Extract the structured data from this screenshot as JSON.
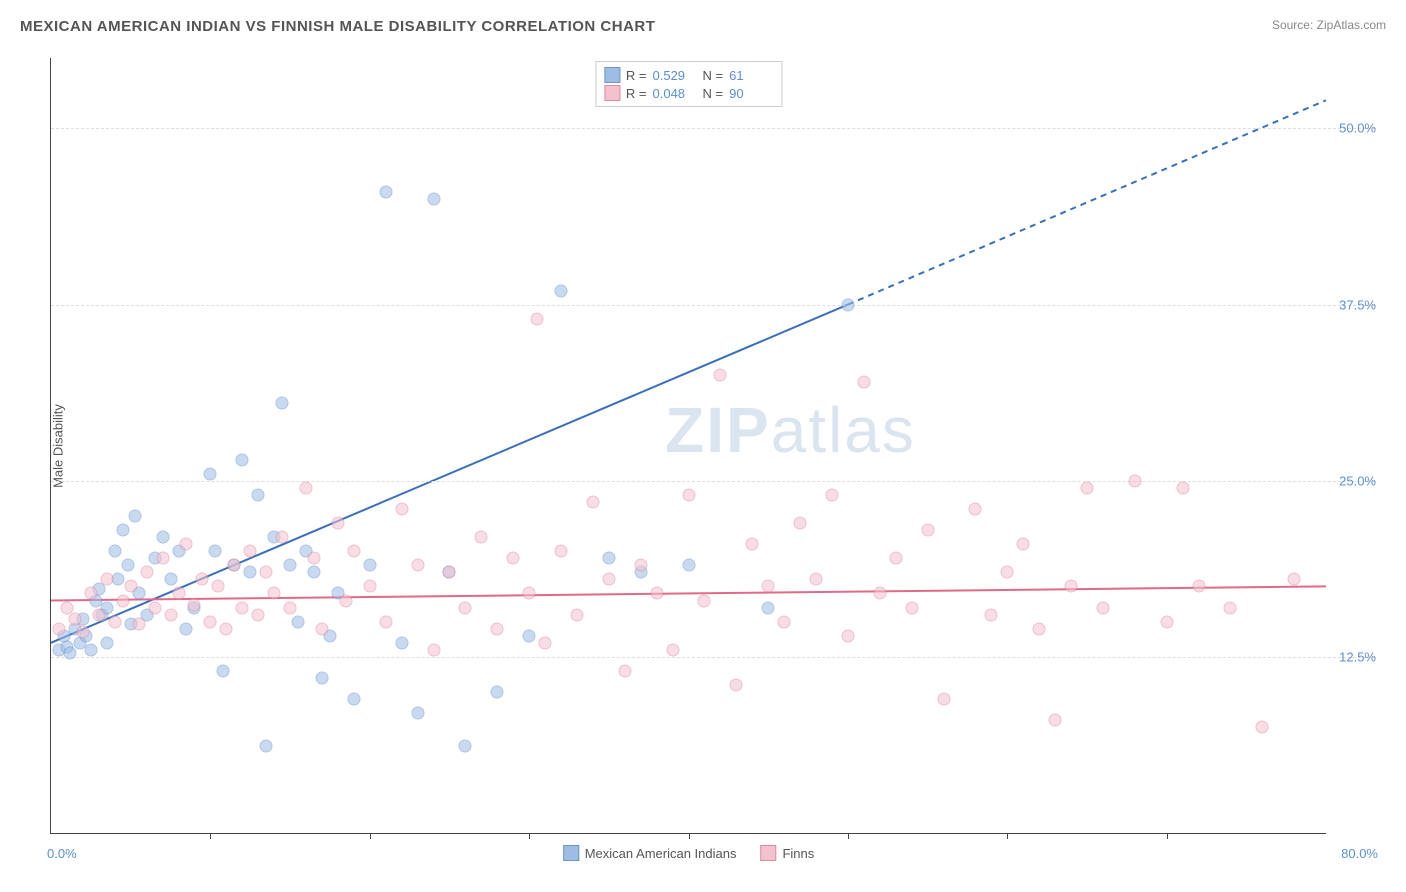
{
  "title": "MEXICAN AMERICAN INDIAN VS FINNISH MALE DISABILITY CORRELATION CHART",
  "source": "Source: ZipAtlas.com",
  "watermark_a": "ZIP",
  "watermark_b": "atlas",
  "chart": {
    "type": "scatter",
    "xlim": [
      0,
      80
    ],
    "ylim": [
      0,
      55
    ],
    "x_label_start": "0.0%",
    "x_label_end": "80.0%",
    "x_tick_positions": [
      10,
      20,
      30,
      40,
      50,
      60,
      70
    ],
    "y_gridlines": [
      12.5,
      25.0,
      37.5,
      50.0
    ],
    "y_tick_labels": [
      "12.5%",
      "25.0%",
      "37.5%",
      "50.0%"
    ],
    "y_axis_title": "Male Disability",
    "background_color": "#ffffff",
    "grid_color": "#dddddd",
    "axis_color": "#444444",
    "tick_label_color": "#5a8fd6",
    "point_radius": 6.5,
    "point_opacity": 0.55,
    "series": [
      {
        "name": "Mexican American Indians",
        "fill_color": "#9ebde5",
        "stroke_color": "#6a96cf",
        "R": "0.529",
        "N": "61",
        "trend": {
          "x1": 0,
          "y1": 13.5,
          "x2": 50,
          "y2": 37.5,
          "x2_dash": 80,
          "y2_dash": 52,
          "color": "#3a6fba",
          "width": 2
        },
        "points": [
          [
            0.5,
            13
          ],
          [
            0.8,
            14
          ],
          [
            1,
            13.2
          ],
          [
            1.2,
            12.8
          ],
          [
            1.5,
            14.5
          ],
          [
            1.8,
            13.5
          ],
          [
            2,
            15.2
          ],
          [
            2.2,
            14
          ],
          [
            2.5,
            13
          ],
          [
            2.8,
            16.5
          ],
          [
            3,
            17.3
          ],
          [
            3.2,
            15.5
          ],
          [
            3.5,
            13.5
          ],
          [
            3.5,
            16
          ],
          [
            4,
            20
          ],
          [
            4.2,
            18
          ],
          [
            4.5,
            21.5
          ],
          [
            4.8,
            19
          ],
          [
            5,
            14.8
          ],
          [
            5.3,
            22.5
          ],
          [
            5.5,
            17
          ],
          [
            6,
            15.5
          ],
          [
            6.5,
            19.5
          ],
          [
            7,
            21
          ],
          [
            7.5,
            18
          ],
          [
            8,
            20
          ],
          [
            8.5,
            14.5
          ],
          [
            9,
            16
          ],
          [
            10,
            25.5
          ],
          [
            10.3,
            20
          ],
          [
            10.8,
            11.5
          ],
          [
            11.5,
            19
          ],
          [
            12,
            26.5
          ],
          [
            12.5,
            18.5
          ],
          [
            13,
            24
          ],
          [
            13.5,
            6.2
          ],
          [
            14,
            21
          ],
          [
            14.5,
            30.5
          ],
          [
            15,
            19
          ],
          [
            15.5,
            15
          ],
          [
            16,
            20
          ],
          [
            16.5,
            18.5
          ],
          [
            17,
            11
          ],
          [
            17.5,
            14
          ],
          [
            18,
            17
          ],
          [
            19,
            9.5
          ],
          [
            20,
            19
          ],
          [
            21,
            45.5
          ],
          [
            22,
            13.5
          ],
          [
            23,
            8.5
          ],
          [
            24,
            45
          ],
          [
            25,
            18.5
          ],
          [
            26,
            6.2
          ],
          [
            28,
            10
          ],
          [
            30,
            14
          ],
          [
            32,
            38.5
          ],
          [
            35,
            19.5
          ],
          [
            37,
            18.5
          ],
          [
            40,
            19
          ],
          [
            45,
            16
          ],
          [
            50,
            37.5
          ]
        ]
      },
      {
        "name": "Finns",
        "fill_color": "#f4c2cf",
        "stroke_color": "#e38ba3",
        "R": "0.048",
        "N": "90",
        "trend": {
          "x1": 0,
          "y1": 16.5,
          "x2": 80,
          "y2": 17.5,
          "color": "#e06a8a",
          "width": 2
        },
        "points": [
          [
            0.5,
            14.5
          ],
          [
            1,
            16
          ],
          [
            1.5,
            15.2
          ],
          [
            2,
            14.3
          ],
          [
            2.5,
            17
          ],
          [
            3,
            15.5
          ],
          [
            3.5,
            18
          ],
          [
            4,
            15
          ],
          [
            4.5,
            16.5
          ],
          [
            5,
            17.5
          ],
          [
            5.5,
            14.8
          ],
          [
            6,
            18.5
          ],
          [
            6.5,
            16
          ],
          [
            7,
            19.5
          ],
          [
            7.5,
            15.5
          ],
          [
            8,
            17
          ],
          [
            8.5,
            20.5
          ],
          [
            9,
            16.2
          ],
          [
            9.5,
            18
          ],
          [
            10,
            15
          ],
          [
            10.5,
            17.5
          ],
          [
            11,
            14.5
          ],
          [
            11.5,
            19
          ],
          [
            12,
            16
          ],
          [
            12.5,
            20
          ],
          [
            13,
            15.5
          ],
          [
            13.5,
            18.5
          ],
          [
            14,
            17
          ],
          [
            14.5,
            21
          ],
          [
            15,
            16
          ],
          [
            16,
            24.5
          ],
          [
            16.5,
            19.5
          ],
          [
            17,
            14.5
          ],
          [
            18,
            22
          ],
          [
            18.5,
            16.5
          ],
          [
            19,
            20
          ],
          [
            20,
            17.5
          ],
          [
            21,
            15
          ],
          [
            22,
            23
          ],
          [
            23,
            19
          ],
          [
            24,
            13
          ],
          [
            25,
            18.5
          ],
          [
            26,
            16
          ],
          [
            27,
            21
          ],
          [
            28,
            14.5
          ],
          [
            29,
            19.5
          ],
          [
            30,
            17
          ],
          [
            30.5,
            36.5
          ],
          [
            31,
            13.5
          ],
          [
            32,
            20
          ],
          [
            33,
            15.5
          ],
          [
            34,
            23.5
          ],
          [
            35,
            18
          ],
          [
            36,
            11.5
          ],
          [
            37,
            19
          ],
          [
            38,
            17
          ],
          [
            39,
            13
          ],
          [
            40,
            24
          ],
          [
            41,
            16.5
          ],
          [
            42,
            32.5
          ],
          [
            43,
            10.5
          ],
          [
            44,
            20.5
          ],
          [
            45,
            17.5
          ],
          [
            46,
            15
          ],
          [
            47,
            22
          ],
          [
            48,
            18
          ],
          [
            49,
            24
          ],
          [
            50,
            14
          ],
          [
            51,
            32
          ],
          [
            52,
            17
          ],
          [
            53,
            19.5
          ],
          [
            54,
            16
          ],
          [
            55,
            21.5
          ],
          [
            56,
            9.5
          ],
          [
            58,
            23
          ],
          [
            59,
            15.5
          ],
          [
            60,
            18.5
          ],
          [
            61,
            20.5
          ],
          [
            62,
            14.5
          ],
          [
            63,
            8
          ],
          [
            64,
            17.5
          ],
          [
            65,
            24.5
          ],
          [
            66,
            16
          ],
          [
            68,
            25
          ],
          [
            70,
            15
          ],
          [
            71,
            24.5
          ],
          [
            72,
            17.5
          ],
          [
            74,
            16
          ],
          [
            76,
            7.5
          ],
          [
            78,
            18
          ]
        ]
      }
    ],
    "legend_top_labels": {
      "R": "R =",
      "N": "N ="
    },
    "legend_bottom": [
      {
        "swatch_fill": "#9ebde5",
        "swatch_stroke": "#6a96cf",
        "label": "Mexican American Indians"
      },
      {
        "swatch_fill": "#f4c2cf",
        "swatch_stroke": "#e38ba3",
        "label": "Finns"
      }
    ]
  }
}
